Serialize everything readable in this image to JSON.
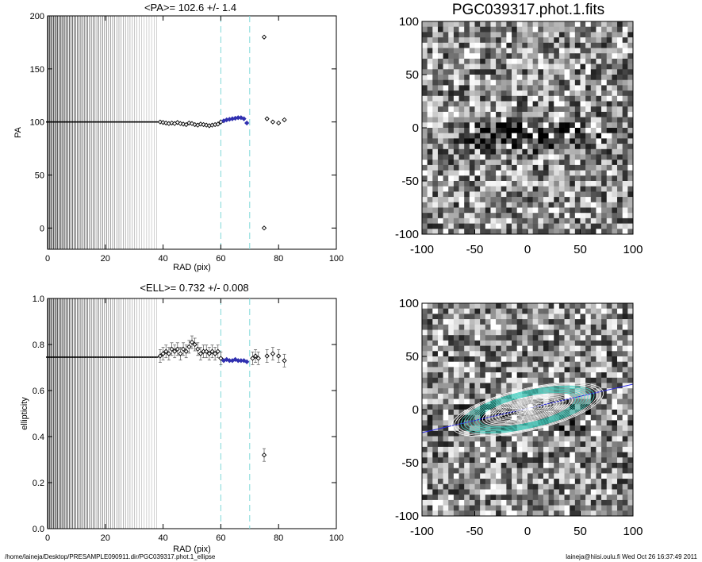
{
  "chart_data": [
    {
      "type": "scatter",
      "title": "<PA>= 102.6 +/-   1.4",
      "xlabel": "RAD (pix)",
      "ylabel": "PA",
      "xlim": [
        0,
        100
      ],
      "ylim": [
        -20,
        200
      ],
      "xticks": [
        "0",
        "20",
        "40",
        "60",
        "80",
        "100"
      ],
      "yticks": [
        "0",
        "50",
        "100",
        "150",
        "200"
      ],
      "vlines_x": [
        60,
        70
      ],
      "vline_color": "#7fd8d8",
      "series": [
        {
          "marker": "diamond",
          "color": "#000000",
          "x": [
            39,
            40,
            41,
            42,
            43,
            44,
            45,
            46,
            47,
            48,
            49,
            50,
            51,
            52,
            53,
            54,
            55,
            56,
            57,
            58,
            59,
            60,
            75,
            75,
            76,
            78,
            80,
            82
          ],
          "y": [
            100,
            99.5,
            99,
            98.5,
            99,
            98.5,
            99.5,
            98.5,
            98,
            97.5,
            99,
            98.5,
            97.5,
            97,
            98,
            97.5,
            97,
            96.5,
            97,
            97.5,
            98,
            100,
            180,
            0,
            103,
            100,
            99,
            102
          ]
        },
        {
          "marker": "diamond",
          "color": "#3030b0",
          "x": [
            61,
            62,
            63,
            64,
            65,
            66,
            67,
            68,
            69
          ],
          "y": [
            101,
            102,
            102.5,
            103,
            103.5,
            104,
            104,
            103,
            99
          ]
        }
      ]
    },
    {
      "type": "scatter",
      "title": "<ELL>= 0.732 +/-  0.008",
      "xlabel": "RAD (pix)",
      "ylabel": "ellipticity",
      "xlim": [
        0,
        100
      ],
      "ylim": [
        0,
        1
      ],
      "xticks": [
        "0",
        "20",
        "40",
        "60",
        "80",
        "100"
      ],
      "yticks": [
        "0.0",
        "0.2",
        "0.4",
        "0.6",
        "0.8",
        "1.0"
      ],
      "vlines_x": [
        60,
        70
      ],
      "vline_color": "#7fd8d8",
      "series": [
        {
          "marker": "diamond",
          "color": "#000000",
          "x": [
            39,
            40,
            41,
            42,
            43,
            44,
            45,
            46,
            47,
            48,
            49,
            50,
            51,
            52,
            53,
            54,
            55,
            56,
            57,
            58,
            59,
            60,
            71,
            72,
            73,
            75,
            76,
            78,
            80,
            82
          ],
          "y": [
            0.75,
            0.76,
            0.77,
            0.76,
            0.78,
            0.77,
            0.78,
            0.76,
            0.78,
            0.77,
            0.79,
            0.81,
            0.8,
            0.78,
            0.76,
            0.77,
            0.77,
            0.76,
            0.77,
            0.76,
            0.77,
            0.74,
            0.74,
            0.75,
            0.74,
            0.32,
            0.75,
            0.76,
            0.75,
            0.73
          ]
        },
        {
          "marker": "diamond",
          "color": "#3030b0",
          "x": [
            61,
            62,
            63,
            64,
            65,
            66,
            67,
            68,
            69
          ],
          "y": [
            0.73,
            0.735,
            0.73,
            0.73,
            0.735,
            0.73,
            0.73,
            0.73,
            0.725
          ]
        }
      ]
    }
  ],
  "image_top": {
    "title": "PGC039317.phot.1.fits",
    "ticks": [
      "-100",
      "-50",
      "0",
      "50",
      "100"
    ]
  },
  "image_bottom": {
    "ticks": [
      "-100",
      "-50",
      "0",
      "50",
      "100"
    ]
  },
  "footer": {
    "path": "/home/laineja/Desktop/PRESAMPLE090911.dir/PGC039317.phot.1_ellipse",
    "stamp": "laineja@hiisi.oulu.fi  Wed Oct 26 16:37:49 2011"
  }
}
